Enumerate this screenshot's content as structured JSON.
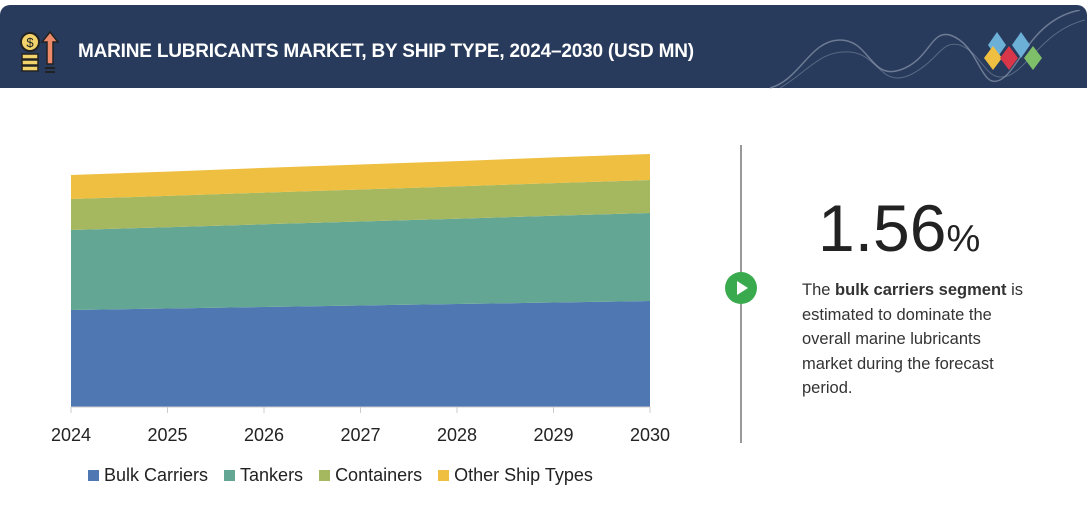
{
  "header": {
    "title": "MARINE LUBRICANTS MARKET, BY SHIP TYPE, 2024–2030 (USD MN)"
  },
  "highlight": {
    "value": "1.56",
    "unit": "%",
    "text_pre": "The ",
    "text_bold": "bulk carriers segment",
    "text_post": " is estimated to dominate the overall marine lubricants market during the forecast period."
  },
  "chart_data": {
    "type": "area",
    "stacked": true,
    "title": "",
    "xlabel": "",
    "ylabel": "",
    "categories": [
      "2024",
      "2025",
      "2026",
      "2027",
      "2028",
      "2029",
      "2030"
    ],
    "ylim": [
      0,
      260
    ],
    "grid": false,
    "legend_position": "bottom",
    "series": [
      {
        "name": "Bulk Carriers",
        "color": "#4f78b2",
        "values": [
          97,
          98.5,
          100,
          101.5,
          103,
          104.5,
          106
        ]
      },
      {
        "name": "Tankers",
        "color": "#64a694",
        "values": [
          80,
          81.3,
          82.7,
          84,
          85.3,
          86.7,
          88
        ]
      },
      {
        "name": "Containers",
        "color": "#a5b860",
        "values": [
          31,
          31.3,
          31.7,
          32,
          32.3,
          32.7,
          33
        ]
      },
      {
        "name": "Other Ship Types",
        "color": "#eebf40",
        "values": [
          24,
          24.3,
          24.7,
          25,
          25.3,
          25.7,
          26
        ]
      }
    ]
  }
}
